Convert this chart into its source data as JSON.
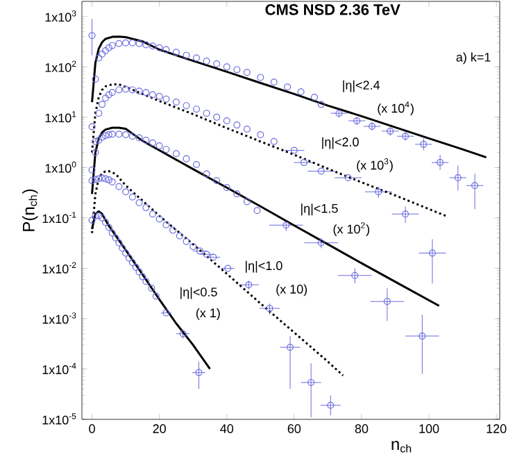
{
  "chart_data": {
    "type": "scatter",
    "title": "CMS NSD  2.36 TeV",
    "xlabel": "n$_{ch}$",
    "ylabel": "P(n$_{ch}$)",
    "log": "y",
    "xlim": [
      -3,
      121
    ],
    "ylim": [
      1e-05,
      2000
    ],
    "xticks": [
      0,
      20,
      40,
      60,
      80,
      100,
      120
    ],
    "yticks": [
      {
        "value": 1e-05,
        "label": "1x10$^{-5}$"
      },
      {
        "value": 0.0001,
        "label": "1x10$^{-4}$"
      },
      {
        "value": 0.001,
        "label": "1x10$^{-3}$"
      },
      {
        "value": 0.01,
        "label": "1x10$^{-2}$"
      },
      {
        "value": 0.1,
        "label": "1x10$^{-1}$"
      },
      {
        "value": 1,
        "label": "1x10$^{0}$"
      },
      {
        "value": 10,
        "label": "1x10$^{1}$"
      },
      {
        "value": 100,
        "label": "1x10$^{2}$"
      },
      {
        "value": 1000,
        "label": "1x10$^{3}$"
      }
    ],
    "series": [
      {
        "color": "#6b6bdf",
        "x": [
          0,
          1,
          2,
          3,
          4,
          5,
          6,
          8,
          10,
          12,
          14,
          16,
          18,
          20,
          22,
          25,
          28,
          31,
          34,
          37,
          40,
          43,
          46,
          50,
          54,
          58,
          62,
          66,
          68,
          73.3,
          78.6,
          83.1,
          88.5,
          93,
          98.4,
          103.3,
          108.6,
          113.6
        ],
        "values": [
          420,
          57,
          150,
          180,
          210,
          240,
          265,
          290,
          300,
          300,
          290,
          275,
          260,
          240,
          220,
          195,
          170,
          150,
          130,
          115,
          100,
          88,
          78,
          62,
          50,
          40,
          32,
          25,
          18,
          12,
          8.5,
          6.6,
          5.3,
          4.2,
          2.9,
          1.26,
          0.63,
          0.44
        ],
        "errors": [
          [
            170,
            900
          ],
          null,
          null,
          null,
          null,
          null,
          null,
          null,
          null,
          null,
          null,
          null,
          null,
          null,
          null,
          null,
          null,
          null,
          null,
          null,
          null,
          null,
          null,
          null,
          null,
          null,
          null,
          null,
          null,
          [
            10,
            14
          ],
          [
            7,
            10
          ],
          [
            5.5,
            8
          ],
          [
            4.3,
            6.3
          ],
          [
            3.4,
            5.2
          ],
          [
            2.2,
            3.8
          ],
          [
            0.9,
            1.8
          ],
          [
            0.35,
            1.1
          ],
          [
            0.15,
            0.75
          ]
        ],
        "xerrors": [
          null,
          null,
          null,
          null,
          null,
          null,
          null,
          null,
          null,
          null,
          null,
          null,
          null,
          null,
          null,
          null,
          null,
          null,
          null,
          null,
          null,
          null,
          null,
          null,
          null,
          null,
          null,
          null,
          null,
          2.5,
          2.5,
          2.5,
          2.5,
          2.5,
          2.5,
          2.5,
          2.5,
          2.5
        ]
      },
      {
        "type": "line",
        "line_style": "solid",
        "color": "#000000",
        "x": [
          0,
          1,
          2,
          3,
          4,
          6,
          8,
          10,
          15,
          20,
          30,
          40,
          50,
          60,
          70,
          80,
          90,
          100,
          110,
          117
        ],
        "values": [
          20,
          120,
          230,
          310,
          360,
          395,
          400,
          390,
          320,
          220,
          132,
          80,
          48,
          29,
          17,
          10.5,
          6.3,
          3.8,
          2.3,
          1.6
        ]
      },
      {
        "color": "#6b6bdf",
        "x": [
          0,
          1,
          2,
          3,
          4,
          5,
          6,
          8,
          10,
          12,
          14,
          16,
          18,
          20,
          22,
          25,
          28,
          31,
          34,
          37,
          40,
          43,
          46,
          50,
          54,
          60,
          62.9,
          68,
          76,
          85,
          93,
          101
        ],
        "values": [
          6.5,
          3.3,
          12,
          18,
          24,
          28,
          31,
          35,
          36,
          35,
          33,
          31,
          28,
          26,
          23,
          20,
          17,
          14.5,
          12,
          10,
          8.5,
          7,
          5.8,
          4.5,
          3.3,
          2.2,
          1.26,
          0.85,
          0.63,
          0.33,
          0.12,
          0.02
        ],
        "errors": [
          null,
          null,
          null,
          null,
          null,
          null,
          null,
          null,
          null,
          null,
          null,
          null,
          null,
          null,
          null,
          null,
          null,
          null,
          null,
          null,
          null,
          null,
          null,
          null,
          null,
          null,
          null,
          null,
          null,
          [
            0.25,
            0.42
          ],
          [
            0.08,
            0.17
          ],
          [
            0.005,
            0.038
          ]
        ],
        "xerrors": [
          null,
          null,
          null,
          null,
          null,
          null,
          null,
          null,
          null,
          null,
          null,
          null,
          null,
          null,
          null,
          null,
          null,
          null,
          null,
          null,
          null,
          null,
          null,
          null,
          null,
          3,
          3,
          4,
          4,
          4,
          4,
          4
        ]
      },
      {
        "type": "line",
        "line_style": "dotted",
        "color": "#000000",
        "x": [
          0,
          1,
          2,
          3,
          4,
          6,
          8,
          10,
          15,
          20,
          30,
          40,
          50,
          60,
          70,
          80,
          90,
          100,
          105
        ],
        "values": [
          2,
          12,
          25,
          35,
          41,
          45,
          45,
          40,
          29,
          21,
          11.5,
          6.1,
          3.3,
          1.8,
          0.95,
          0.51,
          0.28,
          0.15,
          0.11
        ]
      },
      {
        "color": "#6b6bdf",
        "x": [
          0,
          1,
          2,
          3,
          4,
          5,
          6,
          8,
          10,
          12,
          14,
          16,
          18,
          20,
          22,
          25,
          28,
          31,
          34,
          37,
          40,
          43,
          46,
          49,
          57.6,
          68,
          78,
          87.6,
          98
        ],
        "values": [
          0.9,
          2,
          3.5,
          4,
          4.3,
          4.5,
          4.6,
          4.6,
          4.5,
          4.2,
          3.9,
          3.5,
          3.1,
          2.7,
          2.3,
          1.9,
          1.5,
          1.15,
          0.75,
          0.55,
          0.4,
          0.3,
          0.21,
          0.14,
          0.072,
          0.032,
          0.0072,
          0.0022,
          0.00045
        ],
        "errors": [
          null,
          null,
          null,
          null,
          null,
          null,
          null,
          null,
          null,
          null,
          null,
          null,
          null,
          null,
          null,
          null,
          null,
          null,
          null,
          null,
          null,
          null,
          null,
          null,
          [
            0.055,
            0.09
          ],
          [
            0.025,
            0.04
          ],
          [
            0.005,
            0.01
          ],
          [
            0.0009,
            0.004
          ],
          [
            8e-05,
            0.0012
          ]
        ],
        "xerrors": [
          null,
          null,
          null,
          null,
          null,
          null,
          null,
          null,
          null,
          null,
          null,
          null,
          null,
          null,
          null,
          null,
          null,
          null,
          null,
          null,
          null,
          null,
          null,
          null,
          5,
          5,
          5,
          5,
          5
        ]
      },
      {
        "type": "line",
        "line_style": "solid",
        "color": "#000000",
        "x": [
          0,
          1,
          2,
          3,
          4,
          6,
          8,
          10,
          15,
          20,
          30,
          40,
          50,
          60,
          70,
          80,
          90,
          103
        ],
        "values": [
          0.3,
          2,
          3.8,
          5,
          5.7,
          6.2,
          6.2,
          5.9,
          3.4,
          2.2,
          0.93,
          0.4,
          0.17,
          0.071,
          0.03,
          0.0126,
          0.0054,
          0.0018
        ]
      },
      {
        "color": "#6b6bdf",
        "x": [
          0,
          1,
          2,
          3,
          4,
          5,
          6,
          8,
          10,
          12,
          14,
          16,
          18,
          20,
          22,
          24,
          26,
          28,
          30,
          32,
          34,
          36,
          40.3,
          46.5,
          52.7,
          58.8,
          65,
          70.8
        ],
        "values": [
          0.55,
          0.58,
          0.6,
          0.62,
          0.6,
          0.57,
          0.52,
          0.42,
          0.33,
          0.26,
          0.2,
          0.16,
          0.12,
          0.095,
          0.073,
          0.057,
          0.044,
          0.034,
          0.027,
          0.022,
          0.019,
          0.0166,
          0.01,
          0.0047,
          0.0016,
          0.00027,
          5.4e-05,
          1.9e-05
        ],
        "errors": [
          null,
          null,
          null,
          null,
          null,
          null,
          null,
          null,
          null,
          null,
          null,
          null,
          null,
          null,
          null,
          null,
          null,
          null,
          null,
          null,
          null,
          null,
          null,
          [
            0.0038,
            0.0057
          ],
          [
            0.0012,
            0.002
          ],
          [
            4e-05,
            0.00045
          ],
          [
            1.1e-05,
            0.00013
          ],
          [
            1.2e-05,
            3e-05
          ]
        ],
        "xerrors": [
          null,
          null,
          null,
          null,
          null,
          null,
          null,
          null,
          null,
          null,
          null,
          null,
          null,
          null,
          null,
          null,
          null,
          null,
          null,
          2,
          2,
          2,
          2,
          3,
          3,
          3,
          3,
          3
        ]
      },
      {
        "type": "line",
        "line_style": "dotted",
        "color": "#000000",
        "x": [
          0,
          1,
          2,
          3,
          4,
          5,
          7,
          10,
          15,
          20,
          30,
          40,
          50,
          60,
          70,
          74.5
        ],
        "values": [
          0.05,
          0.3,
          0.6,
          0.78,
          0.84,
          0.85,
          0.75,
          0.44,
          0.22,
          0.11,
          0.03,
          0.0078,
          0.002,
          0.00053,
          0.00014,
          7.4e-05
        ]
      },
      {
        "color": "#6b6bdf",
        "x": [
          0,
          1,
          2,
          3,
          4,
          5,
          6,
          7,
          8,
          9,
          10,
          11,
          12,
          13,
          14,
          15,
          16,
          17.7,
          19,
          22,
          27,
          31.7
        ],
        "values": [
          0.09,
          0.11,
          0.11,
          0.1,
          0.082,
          0.065,
          0.05,
          0.04,
          0.032,
          0.025,
          0.02,
          0.016,
          0.013,
          0.0105,
          0.0085,
          0.0068,
          0.0055,
          0.004,
          0.0028,
          0.0013,
          0.0005,
          8.5e-05
        ],
        "errors": [
          null,
          null,
          null,
          null,
          null,
          null,
          null,
          null,
          null,
          null,
          null,
          null,
          null,
          null,
          null,
          null,
          null,
          null,
          null,
          null,
          [
            0.0004,
            0.0006
          ],
          [
            4e-05,
            0.00014
          ]
        ],
        "xerrors": [
          null,
          null,
          null,
          null,
          null,
          null,
          null,
          null,
          null,
          null,
          null,
          null,
          null,
          null,
          null,
          null,
          null,
          null,
          null,
          1.5,
          2,
          2
        ]
      },
      {
        "type": "line",
        "line_style": "solid",
        "color": "#000000",
        "x": [
          0,
          1,
          2,
          3,
          5,
          10,
          15,
          20,
          25,
          30,
          35
        ],
        "values": [
          0.06,
          0.12,
          0.135,
          0.12,
          0.07,
          0.023,
          0.0075,
          0.0024,
          0.0008,
          0.0003,
          0.0001
        ]
      }
    ],
    "annotations": [
      "a) k=1",
      "|η|<2.4",
      "(x 10$^{4}$)",
      "|η|<2.0",
      "(x 10$^{3}$)",
      "|η|<1.5",
      "(x 10$^{2}$)",
      "|η|<1.0",
      "(x 10)",
      "|η|<0.5",
      "(x 1)"
    ]
  }
}
